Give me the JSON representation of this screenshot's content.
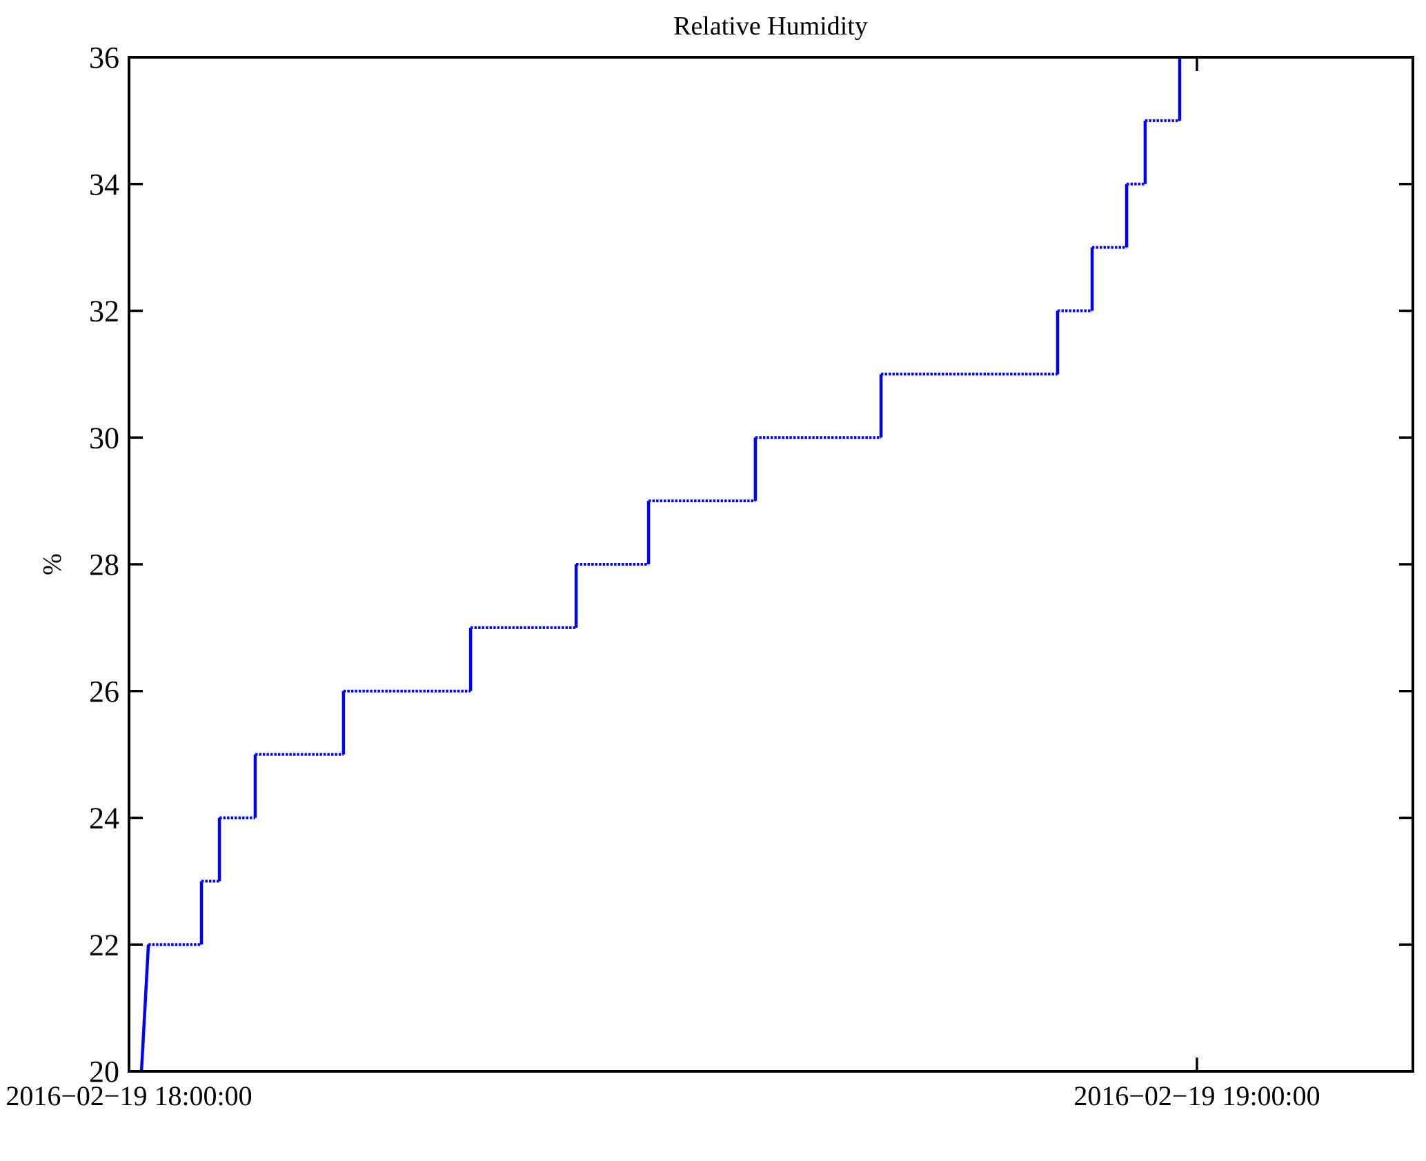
{
  "chart_data": {
    "type": "line",
    "subtype": "step",
    "title": "Relative Humidity",
    "xlabel": "",
    "ylabel": "%",
    "legend": null,
    "grid": false,
    "box": true,
    "tick_direction": "in",
    "line_color": "#0000ff",
    "axis_color": "#000000",
    "background_color": "#ffffff",
    "ylim": [
      20,
      36
    ],
    "y_ticks": [
      20,
      22,
      24,
      26,
      28,
      30,
      32,
      34,
      36
    ],
    "xlim_minutes": [
      0,
      72.13
    ],
    "x_ticks": [
      {
        "t_min": 0,
        "label": "2016−02−19 18:00:00"
      },
      {
        "t_min": 60,
        "label": "2016−02−19 19:00:00"
      }
    ],
    "series": [
      {
        "name": "relative-humidity-percent",
        "units": "%",
        "start_time": "2016-02-19 18:00:00",
        "end_time": "2016-02-19 19:00:00",
        "vertices_minutes": [
          [
            0.0,
            20
          ],
          [
            0.7,
            20
          ],
          [
            1.09,
            22
          ],
          [
            4.07,
            22
          ],
          [
            4.07,
            23
          ],
          [
            5.08,
            23
          ],
          [
            5.08,
            24
          ],
          [
            7.09,
            24
          ],
          [
            7.09,
            25
          ],
          [
            12.05,
            25
          ],
          [
            12.05,
            26
          ],
          [
            19.19,
            26
          ],
          [
            19.19,
            27
          ],
          [
            25.12,
            27
          ],
          [
            25.12,
            28
          ],
          [
            29.19,
            28
          ],
          [
            29.19,
            29
          ],
          [
            35.19,
            29
          ],
          [
            35.19,
            30
          ],
          [
            42.25,
            30
          ],
          [
            42.25,
            31
          ],
          [
            52.17,
            31
          ],
          [
            52.17,
            32
          ],
          [
            54.11,
            32
          ],
          [
            54.11,
            33
          ],
          [
            56.05,
            33
          ],
          [
            56.05,
            34
          ],
          [
            57.09,
            34
          ],
          [
            57.09,
            35
          ],
          [
            59.03,
            35
          ],
          [
            59.03,
            36
          ],
          [
            60.0,
            36
          ]
        ]
      }
    ]
  }
}
